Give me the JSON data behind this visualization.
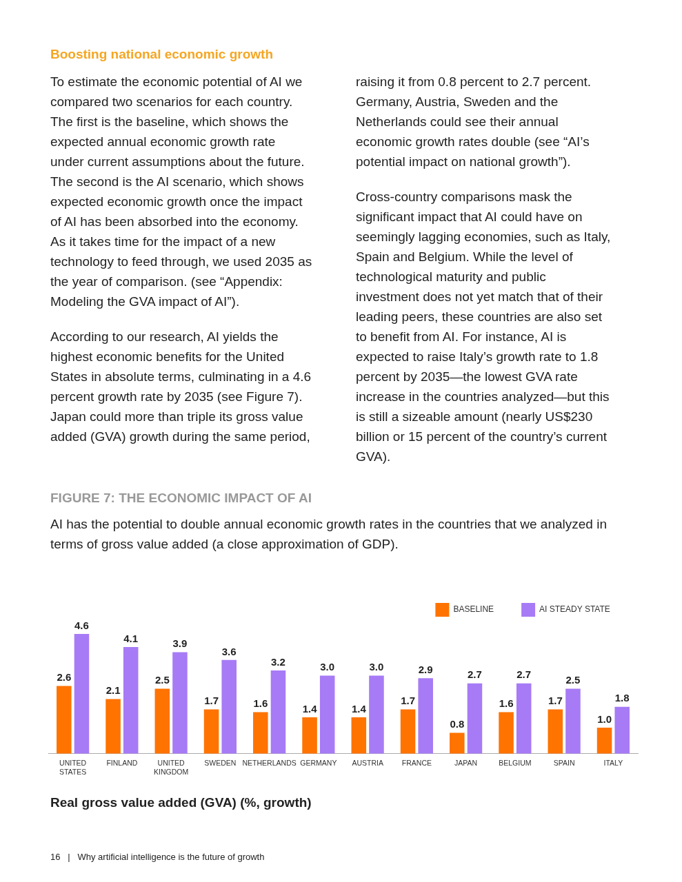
{
  "chart_data": {
    "type": "bar",
    "title": "FIGURE 7: THE ECONOMIC IMPACT OF AI",
    "subtitle": "AI has the potential to double annual economic growth rates in the countries that we analyzed in terms of gross value added (a close approximation of GDP).",
    "categories": [
      "UNITED STATES",
      "FINLAND",
      "UNITED KINGDOM",
      "SWEDEN",
      "NETHERLANDS",
      "GERMANY",
      "AUSTRIA",
      "FRANCE",
      "JAPAN",
      "BELGIUM",
      "SPAIN",
      "ITALY"
    ],
    "series": [
      {
        "name": "BASELINE",
        "color": "#ff7300",
        "values": [
          2.6,
          2.1,
          2.5,
          1.7,
          1.6,
          1.4,
          1.4,
          1.7,
          0.8,
          1.6,
          1.7,
          1.0
        ],
        "value_labels": [
          "2.6",
          "2.1",
          "2.5",
          "1.7",
          "1.6",
          "1.4",
          "1.4",
          "1.7",
          "0.8",
          "1.6",
          "1.7",
          "1.0"
        ]
      },
      {
        "name": "AI STEADY STATE",
        "color": "#a77bf5",
        "values": [
          4.6,
          4.1,
          3.9,
          3.6,
          3.2,
          3.0,
          3.0,
          2.9,
          2.7,
          2.7,
          2.5,
          1.8
        ],
        "value_labels": [
          "4.6",
          "4.1",
          "3.9",
          "3.6",
          "3.2",
          "3.0",
          "3.0",
          "2.9",
          "2.7",
          "2.7",
          "2.5",
          "1.8"
        ]
      }
    ],
    "legend": "top right",
    "grid": false,
    "annotations": [
      "Boosting national economic growth",
      "To estimate the economic potential of AI we compared two scenarios for each country. The first is the baseline, which shows the expected annual economic growth rate under current assumptions about the future. The second is the AI scenario, which shows expected economic growth once the impact of AI has been absorbed into the economy. As it takes time for the impact of a new technology to feed through, we used 2035 as the year of comparison. (see “Appendix: Modeling the GVA impact of AI”).",
      "According to our research, AI yields the highest economic benefits for the United States in absolute terms, culminating in a 4.6 percent growth rate by 2035 (see Figure 7). Japan could more than triple its gross value added (GVA) growth during the same period,",
      "raising it from 0.8 percent to 2.7 percent. Germany, Austria, Sweden and the Netherlands could see their annual economic growth rates double (see “AI’s potential impact on national growth”).",
      "Cross-country comparisons mask the significant impact that AI could have on seemingly lagging economies, such as Italy, Spain and Belgium. While the level of technological maturity and public investment does not yet match that of their leading peers, these countries are also set to benefit from AI. For instance, AI is expected to raise Italy’s growth rate to 1.8 percent by 2035—the lowest GVA rate increase in the countries analyzed—but this is still a sizeable amount (nearly US$230 billion or 15 percent of the country’s current GVA).",
      "Real gross value added (GVA) (%, growth)",
      "16   |   Why artificial intelligence is the future of growth"
    ]
  }
}
